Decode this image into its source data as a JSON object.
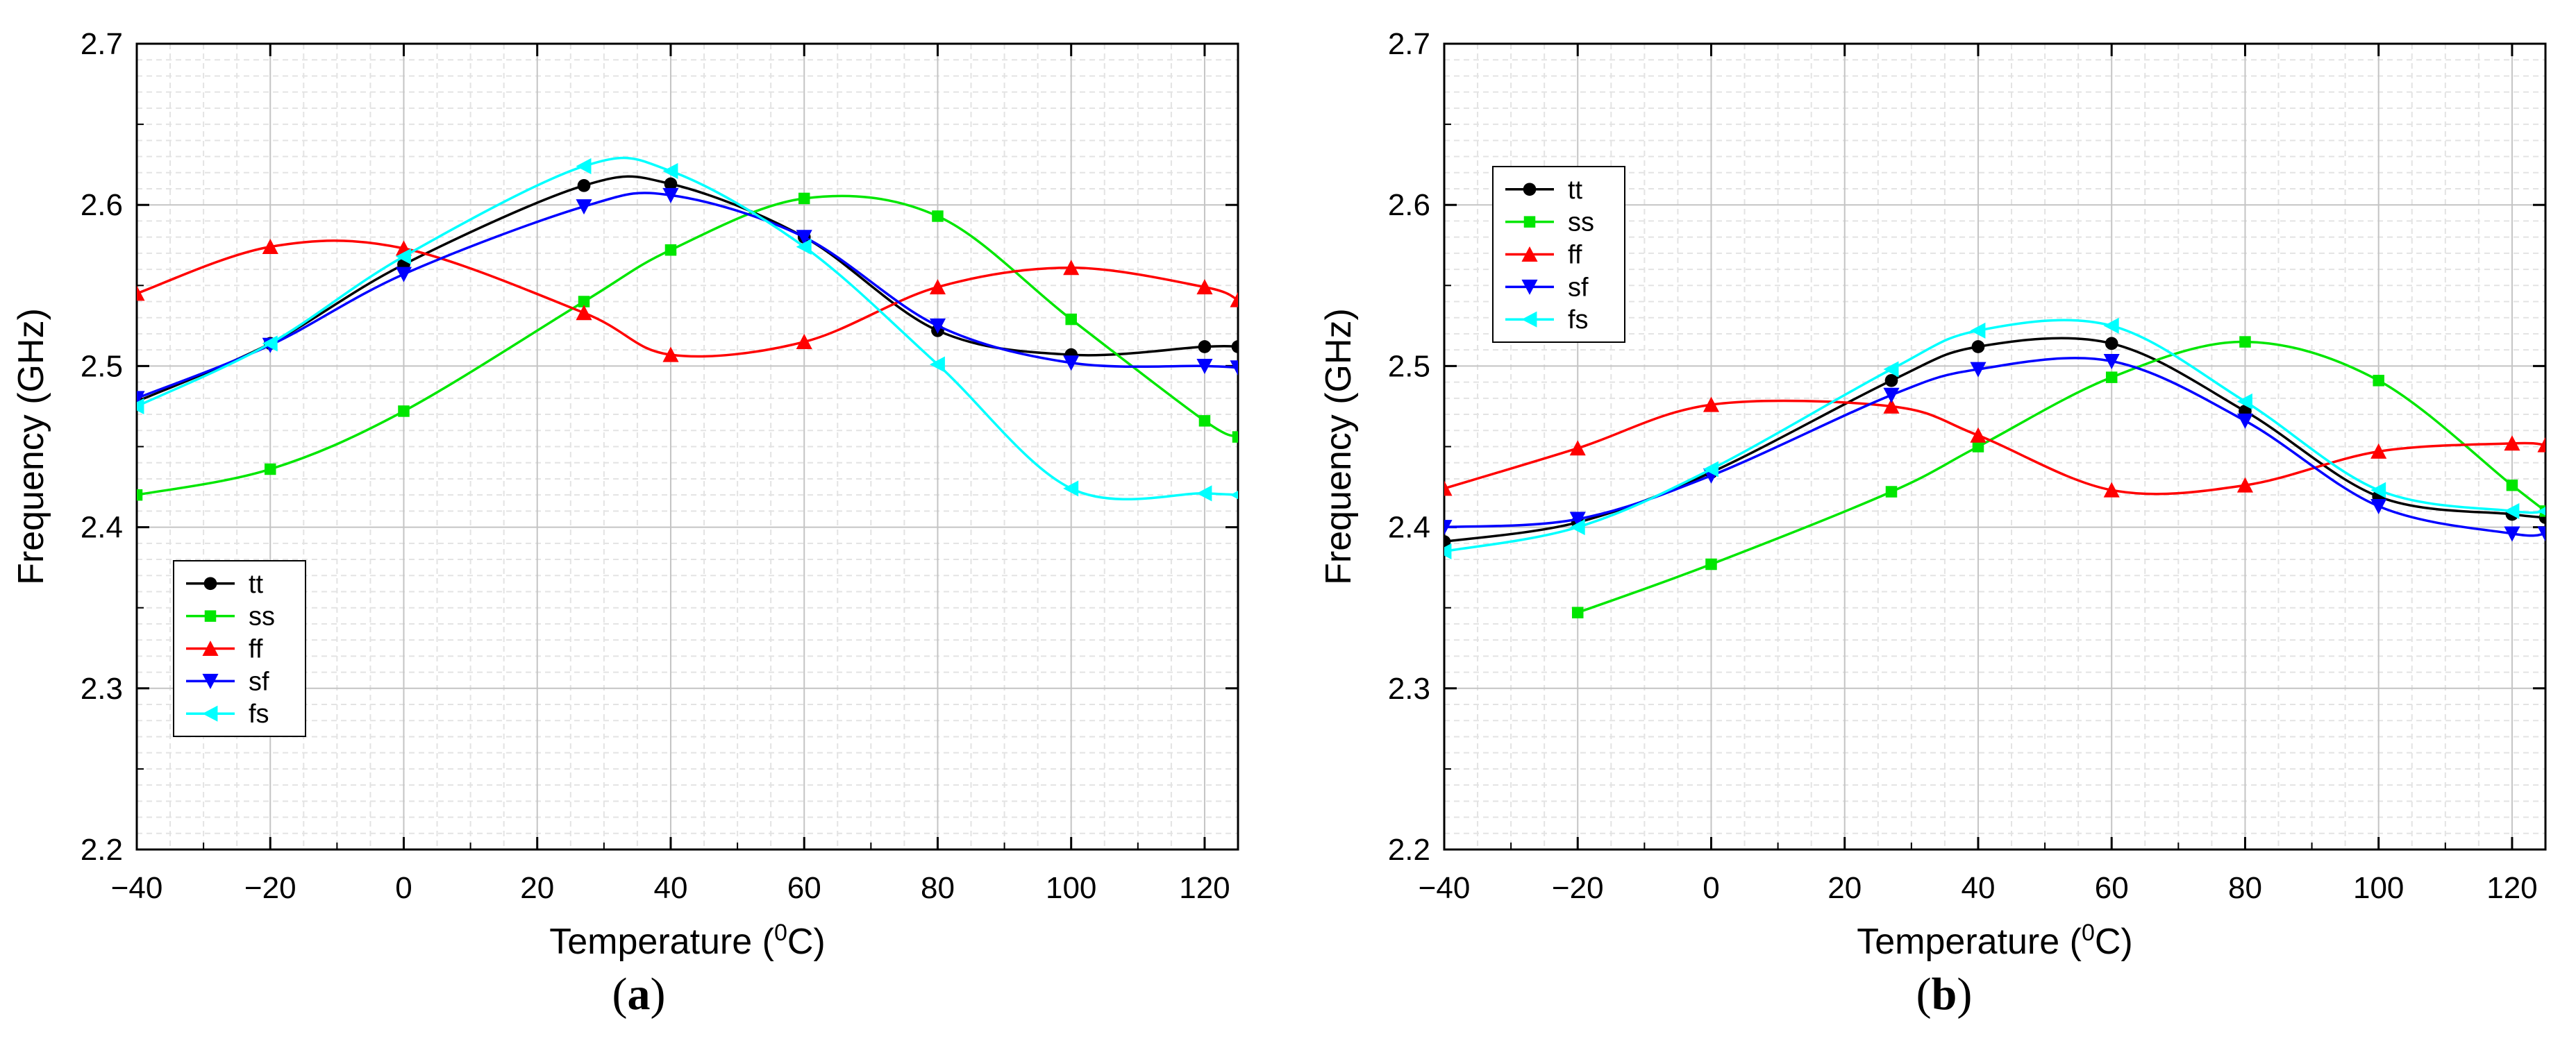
{
  "chart_data": [
    {
      "type": "line",
      "panel_label": "a",
      "xlabel": "Temperature (",
      "xlabel_sup": "0",
      "xlabel_suffix": "C)",
      "ylabel": "Frequency (GHz)",
      "xlim": [
        -40,
        125
      ],
      "ylim": [
        2.2,
        2.7
      ],
      "xticks": [
        -40,
        -20,
        0,
        20,
        40,
        60,
        80,
        100,
        120
      ],
      "xtick_labels": [
        "−40",
        "−20",
        "0",
        "20",
        "40",
        "60",
        "80",
        "100",
        "120"
      ],
      "yticks": [
        2.2,
        2.3,
        2.4,
        2.5,
        2.6,
        2.7
      ],
      "ytick_labels": [
        "2.2",
        "2.3",
        "2.4",
        "2.5",
        "2.6",
        "2.7"
      ],
      "grid": true,
      "legend_position": "bottom-left",
      "series": [
        {
          "name": "tt",
          "color": "#000000",
          "marker": "circle",
          "x": [
            -40,
            -20,
            0,
            27,
            40,
            60,
            80,
            100,
            120,
            125
          ],
          "y": [
            2.478,
            2.514,
            2.563,
            2.612,
            2.613,
            2.58,
            2.522,
            2.507,
            2.512,
            2.512
          ]
        },
        {
          "name": "ss",
          "color": "#00e600",
          "marker": "square",
          "x": [
            -40,
            -20,
            0,
            27,
            40,
            60,
            80,
            100,
            120,
            125
          ],
          "y": [
            2.42,
            2.436,
            2.472,
            2.54,
            2.572,
            2.604,
            2.593,
            2.529,
            2.466,
            2.456
          ]
        },
        {
          "name": "ff",
          "color": "#ff0000",
          "marker": "triangle-up",
          "x": [
            -40,
            -20,
            0,
            27,
            40,
            60,
            80,
            100,
            120,
            125
          ],
          "y": [
            2.545,
            2.574,
            2.573,
            2.533,
            2.507,
            2.515,
            2.549,
            2.561,
            2.549,
            2.541
          ]
        },
        {
          "name": "sf",
          "color": "#0000ff",
          "marker": "triangle-down",
          "x": [
            -40,
            -20,
            0,
            27,
            40,
            60,
            80,
            100,
            120,
            125
          ],
          "y": [
            2.48,
            2.513,
            2.557,
            2.599,
            2.606,
            2.58,
            2.525,
            2.502,
            2.5,
            2.499
          ]
        },
        {
          "name": "fs",
          "color": "#00ffff",
          "marker": "triangle-left",
          "x": [
            -40,
            -20,
            0,
            27,
            40,
            60,
            80,
            100,
            120,
            125
          ],
          "y": [
            2.475,
            2.514,
            2.568,
            2.624,
            2.621,
            2.574,
            2.501,
            2.424,
            2.421,
            2.42
          ]
        }
      ]
    },
    {
      "type": "line",
      "panel_label": "b",
      "xlabel": "Temperature (",
      "xlabel_sup": "0",
      "xlabel_suffix": "C)",
      "ylabel": "Frequency (GHz)",
      "xlim": [
        -40,
        125
      ],
      "ylim": [
        2.2,
        2.7
      ],
      "xticks": [
        -40,
        -20,
        0,
        20,
        40,
        60,
        80,
        100,
        120
      ],
      "xtick_labels": [
        "−40",
        "−20",
        "0",
        "20",
        "40",
        "60",
        "80",
        "100",
        "120"
      ],
      "yticks": [
        2.2,
        2.3,
        2.4,
        2.5,
        2.6,
        2.7
      ],
      "ytick_labels": [
        "2.2",
        "2.3",
        "2.4",
        "2.5",
        "2.6",
        "2.7"
      ],
      "grid": true,
      "legend_position": "top-left",
      "series": [
        {
          "name": "tt",
          "color": "#000000",
          "marker": "circle",
          "x": [
            -40,
            -20,
            0,
            27,
            40,
            60,
            80,
            100,
            120,
            125
          ],
          "y": [
            2.391,
            2.403,
            2.434,
            2.491,
            2.512,
            2.514,
            2.472,
            2.419,
            2.408,
            2.406
          ]
        },
        {
          "name": "ss",
          "color": "#00e600",
          "marker": "square",
          "x": [
            -20,
            0,
            27,
            40,
            60,
            80,
            100,
            120,
            125
          ],
          "y": [
            2.347,
            2.377,
            2.422,
            2.45,
            2.493,
            2.515,
            2.491,
            2.426,
            2.41
          ]
        },
        {
          "name": "ff",
          "color": "#ff0000",
          "marker": "triangle-up",
          "x": [
            -40,
            -20,
            0,
            27,
            40,
            60,
            80,
            100,
            120,
            125
          ],
          "y": [
            2.424,
            2.449,
            2.476,
            2.475,
            2.457,
            2.423,
            2.426,
            2.447,
            2.452,
            2.451
          ]
        },
        {
          "name": "sf",
          "color": "#0000ff",
          "marker": "triangle-down",
          "x": [
            -40,
            -20,
            0,
            27,
            40,
            60,
            80,
            100,
            120,
            125
          ],
          "y": [
            2.4,
            2.405,
            2.432,
            2.482,
            2.498,
            2.503,
            2.466,
            2.413,
            2.396,
            2.396
          ]
        },
        {
          "name": "fs",
          "color": "#00ffff",
          "marker": "triangle-left",
          "x": [
            -40,
            -20,
            0,
            27,
            40,
            60,
            80,
            100,
            120,
            125
          ],
          "y": [
            2.385,
            2.4,
            2.436,
            2.498,
            2.522,
            2.525,
            2.478,
            2.423,
            2.41,
            2.41
          ]
        }
      ]
    }
  ]
}
